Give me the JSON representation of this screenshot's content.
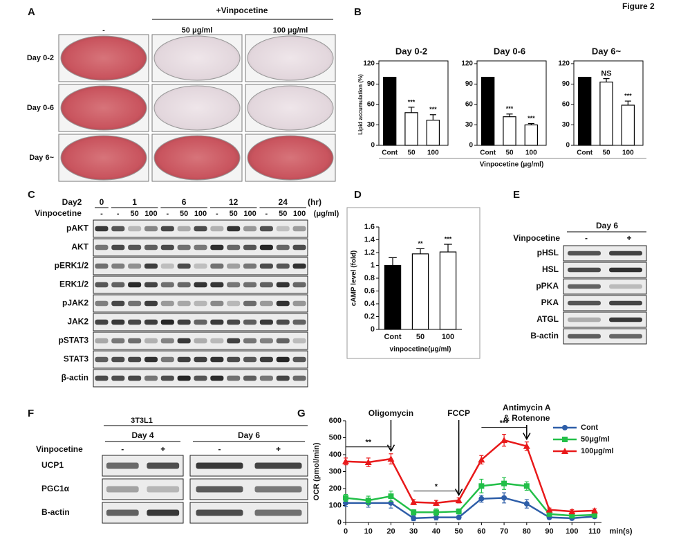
{
  "figure_title": "Figure 2",
  "panel_A": {
    "label": "A",
    "treatment": "+Vinpocetine",
    "columns": [
      "-",
      "50 μg/ml",
      "100 μg/ml"
    ],
    "rows": [
      "Day 0-2",
      "Day 0-6",
      "Day 6~"
    ]
  },
  "panel_B": {
    "label": "B",
    "xlabel": "Vinpocetine (μg/ml)"
  },
  "panel_C": {
    "label": "C",
    "time_title": "Day2",
    "times": [
      "0",
      "1",
      "6",
      "12",
      "24"
    ],
    "time_unit": "(hr)",
    "treatment": "Vinpocetine",
    "doses": [
      "-",
      "-",
      "50",
      "100",
      "-",
      "50",
      "100",
      "-",
      "50",
      "100",
      "-",
      "50",
      "100"
    ],
    "dose_unit": "(μg/ml)",
    "rows": [
      "pAKT",
      "AKT",
      "pERK1/2",
      "ERK1/2",
      "pJAK2",
      "JAK2",
      "pSTAT3",
      "STAT3",
      "β-actin"
    ]
  },
  "panel_D": {
    "label": "D"
  },
  "panel_E": {
    "label": "E",
    "day": "Day 6",
    "treatment": "Vinpocetine",
    "lanes": [
      "-",
      "+"
    ],
    "rows": [
      "pHSL",
      "HSL",
      "pPKA",
      "PKA",
      "ATGL",
      "B-actin"
    ]
  },
  "panel_F": {
    "label": "F",
    "cell_line": "3T3L1",
    "days": [
      "Day 4",
      "Day 6"
    ],
    "treatment": "Vinpocetine",
    "lanes": [
      "-",
      "+",
      "-",
      "+"
    ],
    "rows": [
      "UCP1",
      "PGC1α",
      "B-actin"
    ]
  },
  "panel_G": {
    "label": "G"
  },
  "chart_data": [
    {
      "type": "bar",
      "title": "Day 0-2",
      "ylabel": "Lipid accumulation (%)",
      "categories": [
        "Cont",
        "50",
        "100"
      ],
      "values": [
        100,
        48,
        37
      ],
      "errors": [
        0,
        8,
        8
      ],
      "annotations": [
        null,
        "***",
        "***"
      ],
      "colors": [
        "#000000",
        "#ffffff",
        "#ffffff"
      ],
      "ylim": [
        0,
        120
      ],
      "yticks": [
        0,
        30,
        60,
        90,
        120
      ]
    },
    {
      "type": "bar",
      "title": "Day 0-6",
      "categories": [
        "Cont",
        "50",
        "100"
      ],
      "values": [
        100,
        42,
        30
      ],
      "errors": [
        0,
        4,
        2
      ],
      "annotations": [
        null,
        "***",
        "***"
      ],
      "colors": [
        "#000000",
        "#ffffff",
        "#ffffff"
      ],
      "ylim": [
        0,
        120
      ],
      "yticks": [
        0,
        30,
        60,
        90,
        120
      ]
    },
    {
      "type": "bar",
      "title": "Day 6~",
      "categories": [
        "Cont",
        "50",
        "100"
      ],
      "values": [
        100,
        93,
        59
      ],
      "errors": [
        0,
        5,
        6
      ],
      "annotations": [
        null,
        "NS",
        "***"
      ],
      "colors": [
        "#000000",
        "#ffffff",
        "#ffffff"
      ],
      "ylim": [
        0,
        120
      ],
      "yticks": [
        0,
        30,
        60,
        90,
        120
      ]
    },
    {
      "type": "bar",
      "ylabel": "cAMP level (fold)",
      "xlabel": "vinpocetine(μg/ml)",
      "categories": [
        "Cont",
        "50",
        "100"
      ],
      "values": [
        1.0,
        1.18,
        1.21
      ],
      "errors": [
        0.12,
        0.08,
        0.12
      ],
      "annotations": [
        null,
        "**",
        "***"
      ],
      "colors": [
        "#000000",
        "#ffffff",
        "#ffffff"
      ],
      "ylim": [
        0,
        1.6
      ],
      "yticks": [
        0,
        0.2,
        0.4,
        0.6,
        0.8,
        1,
        1.2,
        1.4,
        1.6
      ]
    },
    {
      "type": "line",
      "ylabel": "OCR (pmol/min)",
      "xlabel": "min(s)",
      "x": [
        0,
        10,
        20,
        30,
        40,
        50,
        60,
        70,
        80,
        90,
        100,
        110
      ],
      "xlim": [
        0,
        110
      ],
      "xticks": [
        0,
        10,
        20,
        30,
        40,
        50,
        60,
        70,
        80,
        90,
        100,
        110
      ],
      "ylim": [
        0,
        600
      ],
      "yticks": [
        0,
        100,
        200,
        300,
        400,
        500,
        600
      ],
      "series": [
        {
          "name": "Cont",
          "color": "#2e5ea8",
          "marker": "circle",
          "values": [
            115,
            115,
            115,
            25,
            30,
            30,
            140,
            145,
            110,
            30,
            25,
            35
          ],
          "errors": [
            20,
            25,
            30,
            15,
            15,
            10,
            20,
            30,
            25,
            10,
            10,
            10
          ]
        },
        {
          "name": "50μg/ml",
          "color": "#22bf48",
          "marker": "square",
          "values": [
            145,
            130,
            155,
            60,
            60,
            65,
            215,
            230,
            215,
            50,
            40,
            45
          ],
          "errors": [
            20,
            25,
            30,
            15,
            20,
            15,
            40,
            35,
            25,
            10,
            10,
            10
          ]
        },
        {
          "name": "100μg/ml",
          "color": "#e8191a",
          "marker": "triangle",
          "values": [
            360,
            355,
            375,
            120,
            115,
            130,
            370,
            485,
            450,
            75,
            65,
            70
          ],
          "errors": [
            20,
            25,
            30,
            15,
            15,
            15,
            25,
            35,
            25,
            10,
            10,
            10
          ]
        }
      ],
      "events": [
        {
          "lines": [
            "Oligomycin"
          ],
          "x": 20
        },
        {
          "lines": [
            "FCCP"
          ],
          "x": 50
        },
        {
          "lines": [
            "Antimycin A",
            "& Rotenone"
          ],
          "x": 80
        }
      ],
      "brackets": [
        {
          "label": "**",
          "x": [
            0,
            20
          ]
        },
        {
          "label": "*",
          "x": [
            30,
            50
          ]
        },
        {
          "label": "***",
          "x": [
            60,
            80
          ]
        }
      ]
    }
  ]
}
